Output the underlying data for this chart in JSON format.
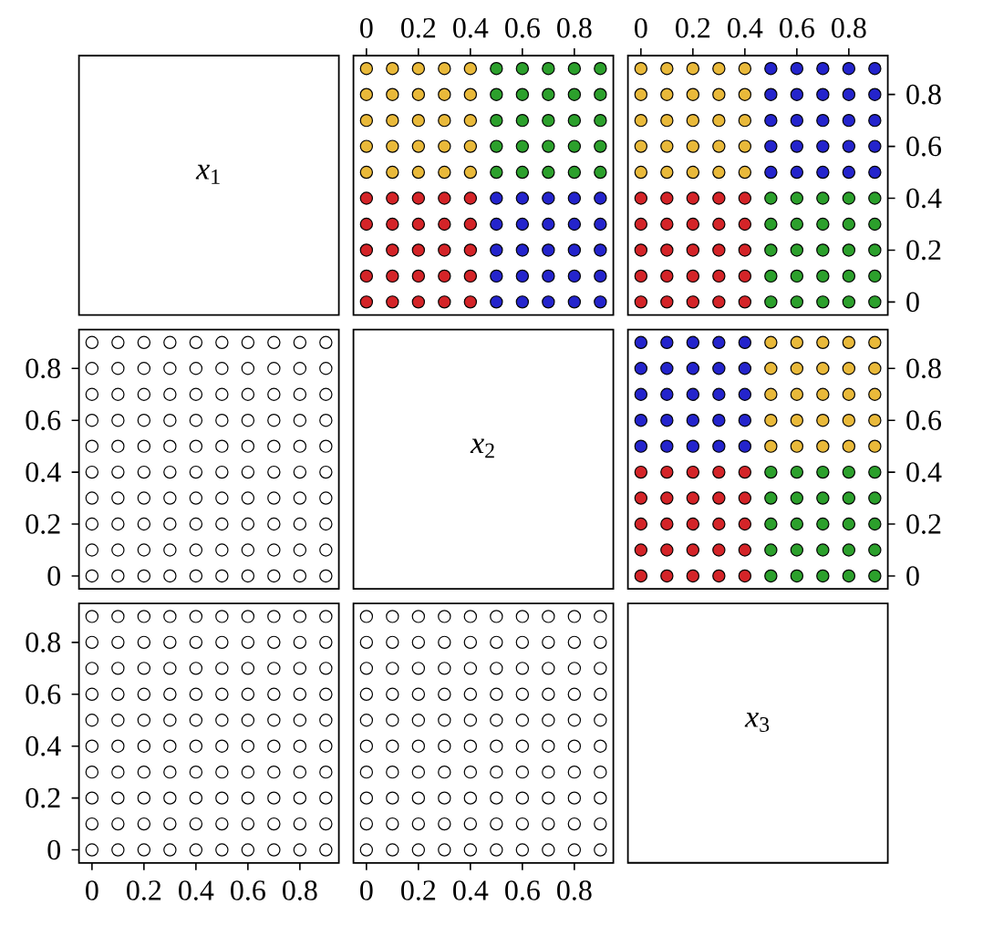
{
  "chart_data": [
    {
      "type": "other",
      "annotations": [
        "*x*$_{1}$"
      ]
    },
    {
      "type": "scatter",
      "marker": "circle",
      "xlim": [
        -0.05,
        0.95
      ],
      "ylim": [
        -0.05,
        0.95
      ],
      "xticks": [
        0,
        0.2,
        0.4,
        0.6,
        0.8
      ],
      "yticks": [
        0,
        0.2,
        0.4,
        0.6,
        0.8
      ],
      "tick_labels": "x",
      "series": [
        {
          "color": "#e9b93a",
          "x": [
            0,
            0,
            0,
            0,
            0,
            0.1,
            0.1,
            0.1,
            0.1,
            0.1,
            0.2,
            0.2,
            0.2,
            0.2,
            0.2,
            0.3,
            0.3,
            0.3,
            0.3,
            0.3,
            0.4,
            0.4,
            0.4,
            0.4,
            0.4
          ],
          "values": [
            0.5,
            0.6,
            0.7,
            0.8,
            0.9,
            0.5,
            0.6,
            0.7,
            0.8,
            0.9,
            0.5,
            0.6,
            0.7,
            0.8,
            0.9,
            0.5,
            0.6,
            0.7,
            0.8,
            0.9,
            0.5,
            0.6,
            0.7,
            0.8,
            0.9
          ]
        },
        {
          "color": "#2ca02c",
          "x": [
            0.5,
            0.5,
            0.5,
            0.5,
            0.5,
            0.6,
            0.6,
            0.6,
            0.6,
            0.6,
            0.7,
            0.7,
            0.7,
            0.7,
            0.7,
            0.8,
            0.8,
            0.8,
            0.8,
            0.8,
            0.9,
            0.9,
            0.9,
            0.9,
            0.9
          ],
          "values": [
            0.5,
            0.6,
            0.7,
            0.8,
            0.9,
            0.5,
            0.6,
            0.7,
            0.8,
            0.9,
            0.5,
            0.6,
            0.7,
            0.8,
            0.9,
            0.5,
            0.6,
            0.7,
            0.8,
            0.9,
            0.5,
            0.6,
            0.7,
            0.8,
            0.9
          ]
        },
        {
          "color": "#d42428",
          "x": [
            0,
            0,
            0,
            0,
            0,
            0.1,
            0.1,
            0.1,
            0.1,
            0.1,
            0.2,
            0.2,
            0.2,
            0.2,
            0.2,
            0.3,
            0.3,
            0.3,
            0.3,
            0.3,
            0.4,
            0.4,
            0.4,
            0.4,
            0.4
          ],
          "values": [
            0,
            0.1,
            0.2,
            0.3,
            0.4,
            0,
            0.1,
            0.2,
            0.3,
            0.4,
            0,
            0.1,
            0.2,
            0.3,
            0.4,
            0,
            0.1,
            0.2,
            0.3,
            0.4,
            0,
            0.1,
            0.2,
            0.3,
            0.4
          ]
        },
        {
          "color": "#2424cc",
          "x": [
            0.5,
            0.5,
            0.5,
            0.5,
            0.5,
            0.6,
            0.6,
            0.6,
            0.6,
            0.6,
            0.7,
            0.7,
            0.7,
            0.7,
            0.7,
            0.8,
            0.8,
            0.8,
            0.8,
            0.8,
            0.9,
            0.9,
            0.9,
            0.9,
            0.9
          ],
          "values": [
            0,
            0.1,
            0.2,
            0.3,
            0.4,
            0,
            0.1,
            0.2,
            0.3,
            0.4,
            0,
            0.1,
            0.2,
            0.3,
            0.4,
            0,
            0.1,
            0.2,
            0.3,
            0.4,
            0,
            0.1,
            0.2,
            0.3,
            0.4
          ]
        }
      ]
    },
    {
      "type": "scatter",
      "marker": "circle",
      "xlim": [
        -0.05,
        0.95
      ],
      "ylim": [
        -0.05,
        0.95
      ],
      "xticks": [
        0,
        0.2,
        0.4,
        0.6,
        0.8
      ],
      "yticks": [
        0,
        0.2,
        0.4,
        0.6,
        0.8
      ],
      "series": [
        {
          "color": "#e9b93a",
          "x": [
            0,
            0,
            0,
            0,
            0,
            0.1,
            0.1,
            0.1,
            0.1,
            0.1,
            0.2,
            0.2,
            0.2,
            0.2,
            0.2,
            0.3,
            0.3,
            0.3,
            0.3,
            0.3,
            0.4,
            0.4,
            0.4,
            0.4,
            0.4
          ],
          "values": [
            0.5,
            0.6,
            0.7,
            0.8,
            0.9,
            0.5,
            0.6,
            0.7,
            0.8,
            0.9,
            0.5,
            0.6,
            0.7,
            0.8,
            0.9,
            0.5,
            0.6,
            0.7,
            0.8,
            0.9,
            0.5,
            0.6,
            0.7,
            0.8,
            0.9
          ]
        },
        {
          "color": "#2424cc",
          "x": [
            0.5,
            0.5,
            0.5,
            0.5,
            0.5,
            0.6,
            0.6,
            0.6,
            0.6,
            0.6,
            0.7,
            0.7,
            0.7,
            0.7,
            0.7,
            0.8,
            0.8,
            0.8,
            0.8,
            0.8,
            0.9,
            0.9,
            0.9,
            0.9,
            0.9
          ],
          "values": [
            0.5,
            0.6,
            0.7,
            0.8,
            0.9,
            0.5,
            0.6,
            0.7,
            0.8,
            0.9,
            0.5,
            0.6,
            0.7,
            0.8,
            0.9,
            0.5,
            0.6,
            0.7,
            0.8,
            0.9,
            0.5,
            0.6,
            0.7,
            0.8,
            0.9
          ]
        },
        {
          "color": "#d42428",
          "x": [
            0,
            0,
            0,
            0,
            0,
            0.1,
            0.1,
            0.1,
            0.1,
            0.1,
            0.2,
            0.2,
            0.2,
            0.2,
            0.2,
            0.3,
            0.3,
            0.3,
            0.3,
            0.3,
            0.4,
            0.4,
            0.4,
            0.4,
            0.4
          ],
          "values": [
            0,
            0.1,
            0.2,
            0.3,
            0.4,
            0,
            0.1,
            0.2,
            0.3,
            0.4,
            0,
            0.1,
            0.2,
            0.3,
            0.4,
            0,
            0.1,
            0.2,
            0.3,
            0.4,
            0,
            0.1,
            0.2,
            0.3,
            0.4
          ]
        },
        {
          "color": "#2ca02c",
          "x": [
            0.5,
            0.5,
            0.5,
            0.5,
            0.5,
            0.6,
            0.6,
            0.6,
            0.6,
            0.6,
            0.7,
            0.7,
            0.7,
            0.7,
            0.7,
            0.8,
            0.8,
            0.8,
            0.8,
            0.8,
            0.9,
            0.9,
            0.9,
            0.9,
            0.9
          ],
          "values": [
            0,
            0.1,
            0.2,
            0.3,
            0.4,
            0,
            0.1,
            0.2,
            0.3,
            0.4,
            0,
            0.1,
            0.2,
            0.3,
            0.4,
            0,
            0.1,
            0.2,
            0.3,
            0.4,
            0,
            0.1,
            0.2,
            0.3,
            0.4
          ]
        }
      ]
    },
    {
      "type": "scatter",
      "marker": "circle",
      "xlim": [
        -0.05,
        0.95
      ],
      "ylim": [
        -0.05,
        0.95
      ],
      "xticks": [
        0,
        0.2,
        0.4,
        0.6,
        0.8
      ],
      "yticks": [
        0,
        0.2,
        0.4,
        0.6,
        0.8
      ],
      "tick_labels": "y",
      "series": [
        {
          "color": "#ffffff",
          "x": [
            0,
            0,
            0,
            0,
            0,
            0,
            0,
            0,
            0,
            0,
            0.1,
            0.1,
            0.1,
            0.1,
            0.1,
            0.1,
            0.1,
            0.1,
            0.1,
            0.1,
            0.2,
            0.2,
            0.2,
            0.2,
            0.2,
            0.2,
            0.2,
            0.2,
            0.2,
            0.2,
            0.3,
            0.3,
            0.3,
            0.3,
            0.3,
            0.3,
            0.3,
            0.3,
            0.3,
            0.3,
            0.4,
            0.4,
            0.4,
            0.4,
            0.4,
            0.4,
            0.4,
            0.4,
            0.4,
            0.4,
            0.5,
            0.5,
            0.5,
            0.5,
            0.5,
            0.5,
            0.5,
            0.5,
            0.5,
            0.5,
            0.6,
            0.6,
            0.6,
            0.6,
            0.6,
            0.6,
            0.6,
            0.6,
            0.6,
            0.6,
            0.7,
            0.7,
            0.7,
            0.7,
            0.7,
            0.7,
            0.7,
            0.7,
            0.7,
            0.7,
            0.8,
            0.8,
            0.8,
            0.8,
            0.8,
            0.8,
            0.8,
            0.8,
            0.8,
            0.8,
            0.9,
            0.9,
            0.9,
            0.9,
            0.9,
            0.9,
            0.9,
            0.9,
            0.9,
            0.9
          ],
          "values": [
            0,
            0.1,
            0.2,
            0.3,
            0.4,
            0.5,
            0.6,
            0.7,
            0.8,
            0.9,
            0,
            0.1,
            0.2,
            0.3,
            0.4,
            0.5,
            0.6,
            0.7,
            0.8,
            0.9,
            0,
            0.1,
            0.2,
            0.3,
            0.4,
            0.5,
            0.6,
            0.7,
            0.8,
            0.9,
            0,
            0.1,
            0.2,
            0.3,
            0.4,
            0.5,
            0.6,
            0.7,
            0.8,
            0.9,
            0,
            0.1,
            0.2,
            0.3,
            0.4,
            0.5,
            0.6,
            0.7,
            0.8,
            0.9,
            0,
            0.1,
            0.2,
            0.3,
            0.4,
            0.5,
            0.6,
            0.7,
            0.8,
            0.9,
            0,
            0.1,
            0.2,
            0.3,
            0.4,
            0.5,
            0.6,
            0.7,
            0.8,
            0.9,
            0,
            0.1,
            0.2,
            0.3,
            0.4,
            0.5,
            0.6,
            0.7,
            0.8,
            0.9,
            0,
            0.1,
            0.2,
            0.3,
            0.4,
            0.5,
            0.6,
            0.7,
            0.8,
            0.9,
            0,
            0.1,
            0.2,
            0.3,
            0.4,
            0.5,
            0.6,
            0.7,
            0.8,
            0.9
          ]
        }
      ]
    },
    {
      "type": "other",
      "annotations": [
        "*x*$_{2}$"
      ]
    },
    {
      "type": "scatter",
      "marker": "circle",
      "xlim": [
        -0.05,
        0.95
      ],
      "ylim": [
        -0.05,
        0.95
      ],
      "xticks": [
        0,
        0.2,
        0.4,
        0.6,
        0.8
      ],
      "yticks": [
        0,
        0.2,
        0.4,
        0.6,
        0.8
      ],
      "tick_labels": "y",
      "series": [
        {
          "color": "#2424cc",
          "x": [
            0,
            0,
            0,
            0,
            0,
            0.1,
            0.1,
            0.1,
            0.1,
            0.1,
            0.2,
            0.2,
            0.2,
            0.2,
            0.2,
            0.3,
            0.3,
            0.3,
            0.3,
            0.3,
            0.4,
            0.4,
            0.4,
            0.4,
            0.4
          ],
          "values": [
            0.5,
            0.6,
            0.7,
            0.8,
            0.9,
            0.5,
            0.6,
            0.7,
            0.8,
            0.9,
            0.5,
            0.6,
            0.7,
            0.8,
            0.9,
            0.5,
            0.6,
            0.7,
            0.8,
            0.9,
            0.5,
            0.6,
            0.7,
            0.8,
            0.9
          ]
        },
        {
          "color": "#e9b93a",
          "x": [
            0.5,
            0.5,
            0.5,
            0.5,
            0.5,
            0.6,
            0.6,
            0.6,
            0.6,
            0.6,
            0.7,
            0.7,
            0.7,
            0.7,
            0.7,
            0.8,
            0.8,
            0.8,
            0.8,
            0.8,
            0.9,
            0.9,
            0.9,
            0.9,
            0.9
          ],
          "values": [
            0.5,
            0.6,
            0.7,
            0.8,
            0.9,
            0.5,
            0.6,
            0.7,
            0.8,
            0.9,
            0.5,
            0.6,
            0.7,
            0.8,
            0.9,
            0.5,
            0.6,
            0.7,
            0.8,
            0.9,
            0.5,
            0.6,
            0.7,
            0.8,
            0.9
          ]
        },
        {
          "color": "#d42428",
          "x": [
            0,
            0,
            0,
            0,
            0,
            0.1,
            0.1,
            0.1,
            0.1,
            0.1,
            0.2,
            0.2,
            0.2,
            0.2,
            0.2,
            0.3,
            0.3,
            0.3,
            0.3,
            0.3,
            0.4,
            0.4,
            0.4,
            0.4,
            0.4
          ],
          "values": [
            0,
            0.1,
            0.2,
            0.3,
            0.4,
            0,
            0.1,
            0.2,
            0.3,
            0.4,
            0,
            0.1,
            0.2,
            0.3,
            0.4,
            0,
            0.1,
            0.2,
            0.3,
            0.4,
            0,
            0.1,
            0.2,
            0.3,
            0.4
          ]
        },
        {
          "color": "#2ca02c",
          "x": [
            0.5,
            0.5,
            0.5,
            0.5,
            0.5,
            0.6,
            0.6,
            0.6,
            0.6,
            0.6,
            0.7,
            0.7,
            0.7,
            0.7,
            0.7,
            0.8,
            0.8,
            0.8,
            0.8,
            0.8,
            0.9,
            0.9,
            0.9,
            0.9,
            0.9
          ],
          "values": [
            0,
            0.1,
            0.2,
            0.3,
            0.4,
            0,
            0.1,
            0.2,
            0.3,
            0.4,
            0,
            0.1,
            0.2,
            0.3,
            0.4,
            0,
            0.1,
            0.2,
            0.3,
            0.4,
            0,
            0.1,
            0.2,
            0.3,
            0.4
          ]
        }
      ]
    },
    {
      "type": "scatter",
      "marker": "circle",
      "xlim": [
        -0.05,
        0.95
      ],
      "ylim": [
        -0.05,
        0.95
      ],
      "xticks": [
        0,
        0.2,
        0.4,
        0.6,
        0.8
      ],
      "yticks": [
        0,
        0.2,
        0.4,
        0.6,
        0.8
      ],
      "series": [
        {
          "color": "#ffffff",
          "x": [
            0,
            0,
            0,
            0,
            0,
            0,
            0,
            0,
            0,
            0,
            0.1,
            0.1,
            0.1,
            0.1,
            0.1,
            0.1,
            0.1,
            0.1,
            0.1,
            0.1,
            0.2,
            0.2,
            0.2,
            0.2,
            0.2,
            0.2,
            0.2,
            0.2,
            0.2,
            0.2,
            0.3,
            0.3,
            0.3,
            0.3,
            0.3,
            0.3,
            0.3,
            0.3,
            0.3,
            0.3,
            0.4,
            0.4,
            0.4,
            0.4,
            0.4,
            0.4,
            0.4,
            0.4,
            0.4,
            0.4,
            0.5,
            0.5,
            0.5,
            0.5,
            0.5,
            0.5,
            0.5,
            0.5,
            0.5,
            0.5,
            0.6,
            0.6,
            0.6,
            0.6,
            0.6,
            0.6,
            0.6,
            0.6,
            0.6,
            0.6,
            0.7,
            0.7,
            0.7,
            0.7,
            0.7,
            0.7,
            0.7,
            0.7,
            0.7,
            0.7,
            0.8,
            0.8,
            0.8,
            0.8,
            0.8,
            0.8,
            0.8,
            0.8,
            0.8,
            0.8,
            0.9,
            0.9,
            0.9,
            0.9,
            0.9,
            0.9,
            0.9,
            0.9,
            0.9,
            0.9
          ],
          "values": [
            0,
            0.1,
            0.2,
            0.3,
            0.4,
            0.5,
            0.6,
            0.7,
            0.8,
            0.9,
            0,
            0.1,
            0.2,
            0.3,
            0.4,
            0.5,
            0.6,
            0.7,
            0.8,
            0.9,
            0,
            0.1,
            0.2,
            0.3,
            0.4,
            0.5,
            0.6,
            0.7,
            0.8,
            0.9,
            0,
            0.1,
            0.2,
            0.3,
            0.4,
            0.5,
            0.6,
            0.7,
            0.8,
            0.9,
            0,
            0.1,
            0.2,
            0.3,
            0.4,
            0.5,
            0.6,
            0.7,
            0.8,
            0.9,
            0,
            0.1,
            0.2,
            0.3,
            0.4,
            0.5,
            0.6,
            0.7,
            0.8,
            0.9,
            0,
            0.1,
            0.2,
            0.3,
            0.4,
            0.5,
            0.6,
            0.7,
            0.8,
            0.9,
            0,
            0.1,
            0.2,
            0.3,
            0.4,
            0.5,
            0.6,
            0.7,
            0.8,
            0.9,
            0,
            0.1,
            0.2,
            0.3,
            0.4,
            0.5,
            0.6,
            0.7,
            0.8,
            0.9,
            0,
            0.1,
            0.2,
            0.3,
            0.4,
            0.5,
            0.6,
            0.7,
            0.8,
            0.9
          ]
        }
      ]
    },
    {
      "type": "scatter",
      "marker": "circle",
      "xlim": [
        -0.05,
        0.95
      ],
      "ylim": [
        -0.05,
        0.95
      ],
      "xticks": [
        0,
        0.2,
        0.4,
        0.6,
        0.8
      ],
      "yticks": [
        0,
        0.2,
        0.4,
        0.6,
        0.8
      ],
      "tick_labels": "x",
      "series": [
        {
          "color": "#ffffff",
          "x": [
            0,
            0,
            0,
            0,
            0,
            0,
            0,
            0,
            0,
            0,
            0.1,
            0.1,
            0.1,
            0.1,
            0.1,
            0.1,
            0.1,
            0.1,
            0.1,
            0.1,
            0.2,
            0.2,
            0.2,
            0.2,
            0.2,
            0.2,
            0.2,
            0.2,
            0.2,
            0.2,
            0.3,
            0.3,
            0.3,
            0.3,
            0.3,
            0.3,
            0.3,
            0.3,
            0.3,
            0.3,
            0.4,
            0.4,
            0.4,
            0.4,
            0.4,
            0.4,
            0.4,
            0.4,
            0.4,
            0.4,
            0.5,
            0.5,
            0.5,
            0.5,
            0.5,
            0.5,
            0.5,
            0.5,
            0.5,
            0.5,
            0.6,
            0.6,
            0.6,
            0.6,
            0.6,
            0.6,
            0.6,
            0.6,
            0.6,
            0.6,
            0.7,
            0.7,
            0.7,
            0.7,
            0.7,
            0.7,
            0.7,
            0.7,
            0.7,
            0.7,
            0.8,
            0.8,
            0.8,
            0.8,
            0.8,
            0.8,
            0.8,
            0.8,
            0.8,
            0.8,
            0.9,
            0.9,
            0.9,
            0.9,
            0.9,
            0.9,
            0.9,
            0.9,
            0.9,
            0.9
          ],
          "values": [
            0,
            0.1,
            0.2,
            0.3,
            0.4,
            0.5,
            0.6,
            0.7,
            0.8,
            0.9,
            0,
            0.1,
            0.2,
            0.3,
            0.4,
            0.5,
            0.6,
            0.7,
            0.8,
            0.9,
            0,
            0.1,
            0.2,
            0.3,
            0.4,
            0.5,
            0.6,
            0.7,
            0.8,
            0.9,
            0,
            0.1,
            0.2,
            0.3,
            0.4,
            0.5,
            0.6,
            0.7,
            0.8,
            0.9,
            0,
            0.1,
            0.2,
            0.3,
            0.4,
            0.5,
            0.6,
            0.7,
            0.8,
            0.9,
            0,
            0.1,
            0.2,
            0.3,
            0.4,
            0.5,
            0.6,
            0.7,
            0.8,
            0.9,
            0,
            0.1,
            0.2,
            0.3,
            0.4,
            0.5,
            0.6,
            0.7,
            0.8,
            0.9,
            0,
            0.1,
            0.2,
            0.3,
            0.4,
            0.5,
            0.6,
            0.7,
            0.8,
            0.9,
            0,
            0.1,
            0.2,
            0.3,
            0.4,
            0.5,
            0.6,
            0.7,
            0.8,
            0.9,
            0,
            0.1,
            0.2,
            0.3,
            0.4,
            0.5,
            0.6,
            0.7,
            0.8,
            0.9
          ]
        }
      ]
    },
    {
      "type": "other",
      "annotations": [
        "*x*$_{3}$"
      ]
    }
  ]
}
